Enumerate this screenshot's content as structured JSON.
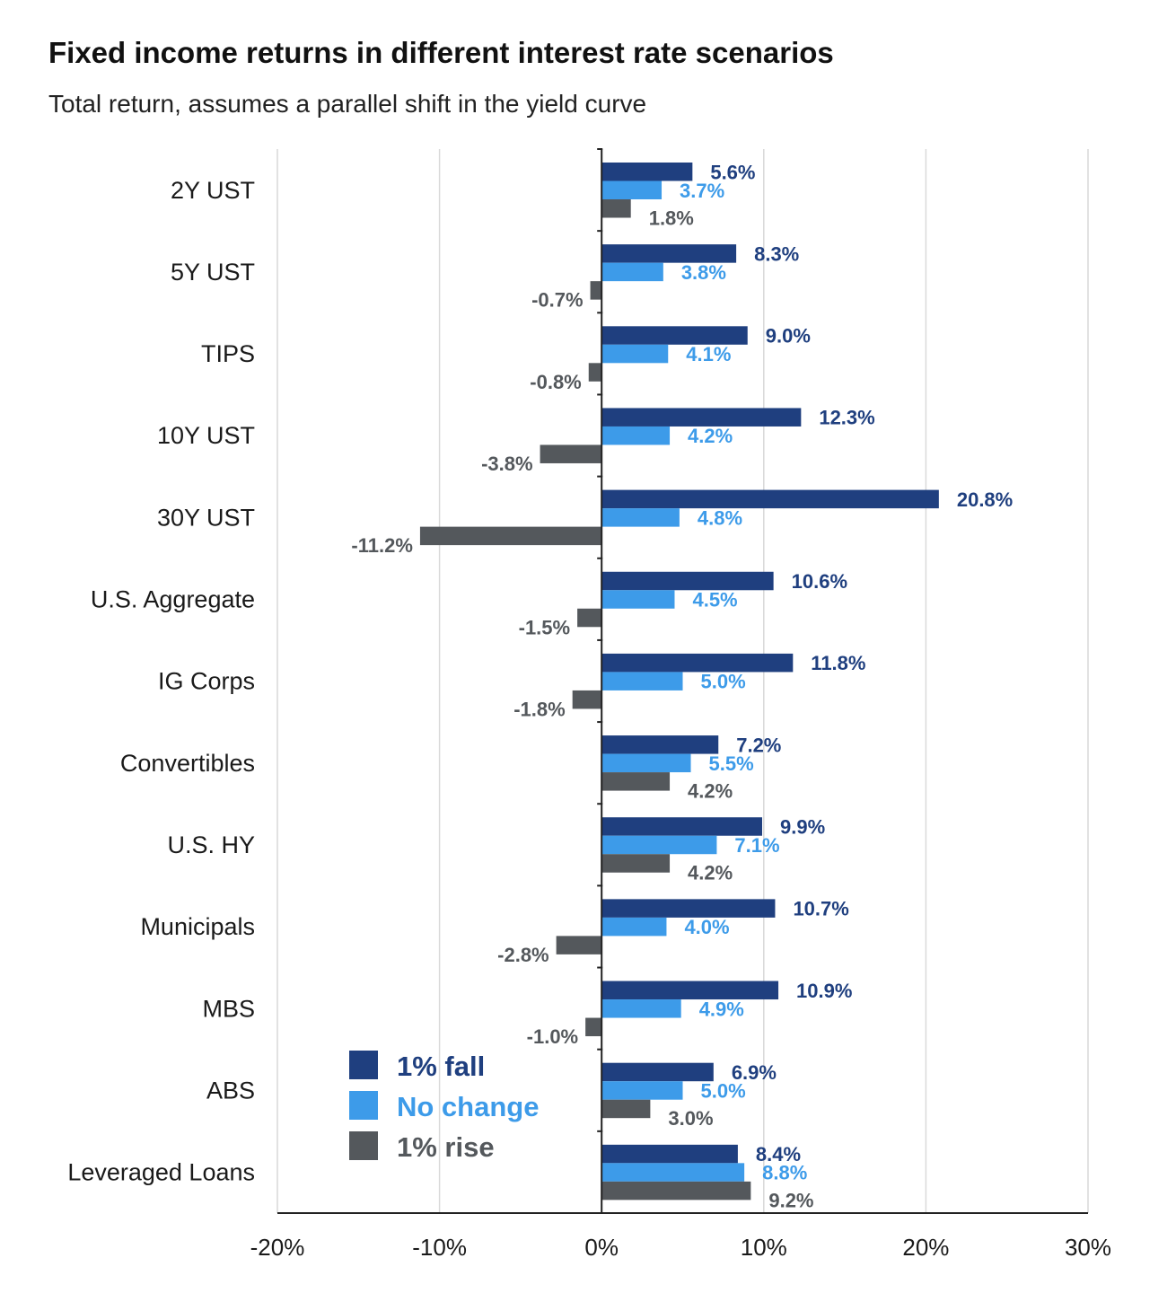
{
  "header": {
    "title": "Fixed income returns in different interest rate scenarios",
    "subtitle": "Total return, assumes a parallel shift in the yield curve"
  },
  "colors": {
    "fall": "#1f3f7f",
    "no_change": "#3d9be9",
    "rise": "#54585c",
    "grid": "#d9d9d9",
    "axis": "#222222"
  },
  "chart_data": {
    "type": "bar",
    "orientation": "horizontal",
    "title": "Fixed income returns in different interest rate scenarios",
    "subtitle": "Total return, assumes a parallel shift in the yield curve",
    "categories": [
      "2Y UST",
      "5Y UST",
      "TIPS",
      "10Y UST",
      "30Y UST",
      "U.S. Aggregate",
      "IG Corps",
      "Convertibles",
      "U.S. HY",
      "Municipals",
      "MBS",
      "ABS",
      "Leveraged Loans"
    ],
    "series": [
      {
        "name": "1% fall",
        "values": [
          5.6,
          8.3,
          9.0,
          12.3,
          20.8,
          10.6,
          11.8,
          7.2,
          9.9,
          10.7,
          10.9,
          6.9,
          8.4
        ],
        "labels": [
          "5.6%",
          "8.3%",
          "9.0%",
          "12.3%",
          "20.8%",
          "10.6%",
          "11.8%",
          "7.2%",
          "9.9%",
          "10.7%",
          "10.9%",
          "6.9%",
          "8.4%"
        ]
      },
      {
        "name": "No change",
        "values": [
          3.7,
          3.8,
          4.1,
          4.2,
          4.8,
          4.5,
          5.0,
          5.5,
          7.1,
          4.0,
          4.9,
          5.0,
          8.8
        ],
        "labels": [
          "3.7%",
          "3.8%",
          "4.1%",
          "4.2%",
          "4.8%",
          "4.5%",
          "5.0%",
          "5.5%",
          "7.1%",
          "4.0%",
          "4.9%",
          "5.0%",
          "8.8%"
        ]
      },
      {
        "name": "1% rise",
        "values": [
          1.8,
          -0.7,
          -0.8,
          -3.8,
          -11.2,
          -1.5,
          -1.8,
          4.2,
          4.2,
          -2.8,
          -1.0,
          3.0,
          9.2
        ],
        "labels": [
          "1.8%",
          "-0.7%",
          "-0.8%",
          "-3.8%",
          "-11.2%",
          "-1.5%",
          "-1.8%",
          "4.2%",
          "4.2%",
          "-2.8%",
          "-1.0%",
          "3.0%",
          "9.2%"
        ]
      }
    ],
    "xlim": [
      -20,
      30
    ],
    "xticks": [
      -20,
      -10,
      0,
      10,
      20,
      30
    ],
    "xtick_labels": [
      "-20%",
      "-10%",
      "0%",
      "10%",
      "20%",
      "30%"
    ],
    "grid": true,
    "legend": "lower-left inside plot"
  }
}
